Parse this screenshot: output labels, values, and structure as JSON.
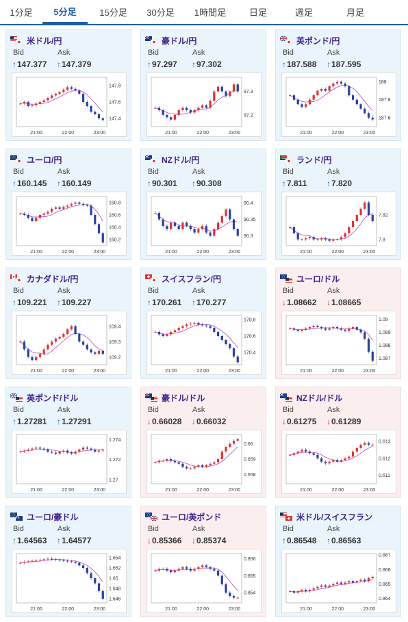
{
  "tabs": [
    {
      "label": "1分足",
      "active": false
    },
    {
      "label": "5分足",
      "active": true
    },
    {
      "label": "15分足",
      "active": false
    },
    {
      "label": "30分足",
      "active": false
    },
    {
      "label": "1時間足",
      "active": false
    },
    {
      "label": "日足",
      "active": false
    },
    {
      "label": "週足",
      "active": false
    },
    {
      "label": "月足",
      "active": false
    }
  ],
  "labels": {
    "bid": "Bid",
    "ask": "Ask"
  },
  "colors": {
    "up_candle": "#d33",
    "down_candle": "#2a3fa0",
    "ma_line": "#c040c0",
    "card_up_bg": "#eaf4fb",
    "card_down_bg": "#fbeeee",
    "up_arrow": "#1a5fa8",
    "down_arrow": "#c03030"
  },
  "pairs": [
    {
      "name": "米ドル/円",
      "flag": "us-jp-flag",
      "trend": "up",
      "bid": "147.377",
      "ask": "147.379",
      "times": [
        "21:00",
        "22:00",
        "23:00"
      ],
      "ticks": [
        "147.8",
        "147.6",
        "147.4"
      ],
      "ylim": [
        147.3,
        147.9
      ],
      "ohlc": [
        147.58,
        147.6,
        147.55,
        147.56,
        147.58,
        147.6,
        147.62,
        147.65,
        147.68,
        147.7,
        147.72,
        147.75,
        147.78,
        147.76,
        147.74,
        147.7,
        147.6,
        147.55,
        147.48,
        147.45,
        147.4,
        147.38
      ]
    },
    {
      "name": "豪ドル/円",
      "flag": "au-jp-flag",
      "trend": "up",
      "bid": "97.297",
      "ask": "97.302",
      "times": [
        "21:00",
        "22:00",
        "23:00"
      ],
      "ticks": [
        "97.3",
        "97.2"
      ],
      "ylim": [
        97.15,
        97.36
      ],
      "ohlc": [
        97.23,
        97.22,
        97.2,
        97.19,
        97.18,
        97.2,
        97.22,
        97.23,
        97.22,
        97.21,
        97.22,
        97.23,
        97.24,
        97.23,
        97.26,
        97.3,
        97.32,
        97.3,
        97.28,
        97.3,
        97.33,
        97.3
      ]
    },
    {
      "name": "英ポンド/円",
      "flag": "uk-jp-flag",
      "trend": "up",
      "bid": "187.588",
      "ask": "187.595",
      "times": [
        "21:00",
        "22:00",
        "23:00"
      ],
      "ticks": [
        "188",
        "187.8",
        "187.6"
      ],
      "ylim": [
        187.5,
        188.05
      ],
      "ohlc": [
        187.85,
        187.8,
        187.75,
        187.72,
        187.75,
        187.8,
        187.85,
        187.9,
        187.92,
        187.9,
        187.95,
        187.98,
        188.0,
        187.98,
        187.95,
        187.85,
        187.8,
        187.75,
        187.7,
        187.65,
        187.6,
        187.58
      ]
    },
    {
      "name": "ユーロ/円",
      "flag": "eu-jp-flag",
      "trend": "up",
      "bid": "160.145",
      "ask": "160.149",
      "times": [
        "21:00",
        "22:00",
        "23:00"
      ],
      "ticks": [
        "160.8",
        "160.6",
        "160.4",
        "160.2"
      ],
      "ylim": [
        160.1,
        160.9
      ],
      "ohlc": [
        160.62,
        160.6,
        160.55,
        160.5,
        160.55,
        160.6,
        160.62,
        160.65,
        160.7,
        160.72,
        160.7,
        160.73,
        160.75,
        160.78,
        160.8,
        160.78,
        160.76,
        160.75,
        160.6,
        160.45,
        160.3,
        160.15
      ]
    },
    {
      "name": "NZドル/円",
      "flag": "nz-jp-flag",
      "trend": "up",
      "bid": "90.301",
      "ask": "90.308",
      "times": [
        "21:00",
        "22:00",
        "23:00"
      ],
      "ticks": [
        "90.4",
        "90.35",
        "90.3"
      ],
      "ylim": [
        90.27,
        90.42
      ],
      "ohlc": [
        90.37,
        90.35,
        90.33,
        90.32,
        90.34,
        90.33,
        90.32,
        90.34,
        90.33,
        90.32,
        90.31,
        90.32,
        90.33,
        90.31,
        90.3,
        90.32,
        90.34,
        90.36,
        90.38,
        90.35,
        90.32,
        90.3
      ]
    },
    {
      "name": "ランド/円",
      "flag": "za-jp-flag",
      "trend": "up",
      "bid": "7.811",
      "ask": "7.820",
      "times": [
        "21:00",
        "22:00",
        "23:00"
      ],
      "ticks": [
        "7.82",
        "7.8"
      ],
      "ylim": [
        7.795,
        7.835
      ],
      "ohlc": [
        7.81,
        7.805,
        7.8,
        7.8,
        7.801,
        7.802,
        7.8,
        7.8,
        7.801,
        7.8,
        7.799,
        7.8,
        7.8,
        7.802,
        7.805,
        7.81,
        7.815,
        7.82,
        7.825,
        7.83,
        7.82,
        7.815
      ]
    },
    {
      "name": "カナダドル/円",
      "flag": "ca-jp-flag",
      "trend": "up",
      "bid": "109.221",
      "ask": "109.227",
      "times": [
        "21:00",
        "22:00",
        "23:00"
      ],
      "ticks": [
        "109.4",
        "109.3",
        "109.2"
      ],
      "ylim": [
        109.15,
        109.47
      ],
      "ohlc": [
        109.3,
        109.25,
        109.2,
        109.18,
        109.2,
        109.22,
        109.25,
        109.28,
        109.3,
        109.32,
        109.33,
        109.35,
        109.38,
        109.4,
        109.35,
        109.3,
        109.28,
        109.25,
        109.23,
        109.22,
        109.24,
        109.22
      ]
    },
    {
      "name": "スイスフラン/円",
      "flag": "ch-jp-flag",
      "trend": "up",
      "bid": "170.261",
      "ask": "170.277",
      "times": [
        "21:00",
        "22:00",
        "23:00"
      ],
      "ticks": [
        "170.8",
        "170.6",
        "170.4"
      ],
      "ylim": [
        170.25,
        170.85
      ],
      "ohlc": [
        170.65,
        170.62,
        170.6,
        170.62,
        170.65,
        170.67,
        170.7,
        170.72,
        170.74,
        170.75,
        170.76,
        170.74,
        170.73,
        170.72,
        170.7,
        170.65,
        170.6,
        170.55,
        170.5,
        170.45,
        170.35,
        170.28
      ]
    },
    {
      "name": "ユーロ/ドル",
      "flag": "eu-us-flag",
      "trend": "down",
      "bid": "1.08662",
      "ask": "1.08665",
      "times": [
        "21:00",
        "22:00",
        "23:00"
      ],
      "ticks": [
        "1.09",
        "1.089",
        "1.088",
        "1.087"
      ],
      "ylim": [
        1.0865,
        1.0903
      ],
      "ohlc": [
        1.0893,
        1.0892,
        1.0891,
        1.0892,
        1.0893,
        1.0894,
        1.0895,
        1.0894,
        1.0893,
        1.0892,
        1.0893,
        1.0894,
        1.0893,
        1.0892,
        1.0891,
        1.0893,
        1.0894,
        1.0892,
        1.089,
        1.0885,
        1.0875,
        1.0868
      ]
    },
    {
      "name": "英ポンド/ドル",
      "flag": "uk-us-flag",
      "trend": "up",
      "bid": "1.27281",
      "ask": "1.27291",
      "times": [
        "21:00",
        "22:00",
        "23:00"
      ],
      "ticks": [
        "1.274",
        "1.272",
        "1.27"
      ],
      "ylim": [
        1.2696,
        1.2745
      ],
      "ohlc": [
        1.2728,
        1.2729,
        1.273,
        1.2731,
        1.2732,
        1.2731,
        1.273,
        1.2728,
        1.2727,
        1.2726,
        1.2728,
        1.2729,
        1.2727,
        1.2726,
        1.2728,
        1.273,
        1.2732,
        1.2731,
        1.273,
        1.2728,
        1.2729,
        1.273
      ]
    },
    {
      "name": "豪ドル/ドル",
      "flag": "au-us-flag",
      "trend": "down",
      "bid": "0.66028",
      "ask": "0.66032",
      "times": [
        "21:00",
        "22:00",
        "23:00"
      ],
      "ticks": [
        "0.66",
        "0.659",
        "0.658"
      ],
      "ylim": [
        0.6574,
        0.6606
      ],
      "ohlc": [
        0.6588,
        0.6589,
        0.6589,
        0.659,
        0.6589,
        0.6588,
        0.6587,
        0.6585,
        0.6584,
        0.6584,
        0.6585,
        0.6586,
        0.6585,
        0.6586,
        0.6587,
        0.6588,
        0.659,
        0.6595,
        0.6598,
        0.66,
        0.6602,
        0.6603
      ]
    },
    {
      "name": "NZドル/ドル",
      "flag": "nz-us-flag",
      "trend": "down",
      "bid": "0.61275",
      "ask": "0.61289",
      "times": [
        "21:00",
        "22:00",
        "23:00"
      ],
      "ticks": [
        "0.613",
        "0.612",
        "0.611"
      ],
      "ylim": [
        0.6105,
        0.6134
      ],
      "ohlc": [
        0.6122,
        0.6123,
        0.6124,
        0.6125,
        0.6124,
        0.6123,
        0.6122,
        0.612,
        0.6118,
        0.6117,
        0.6118,
        0.6119,
        0.6118,
        0.6119,
        0.612,
        0.6121,
        0.6124,
        0.6126,
        0.6128,
        0.6129,
        0.6128,
        0.6128
      ]
    },
    {
      "name": "ユーロ/豪ドル",
      "flag": "eu-au-flag",
      "trend": "up",
      "bid": "1.64563",
      "ask": "1.64577",
      "times": [
        "21:00",
        "22:00",
        "23:00"
      ],
      "ticks": [
        "1.654",
        "1.652",
        "1.65",
        "1.648",
        "1.646"
      ],
      "ylim": [
        1.6452,
        1.6548
      ],
      "ohlc": [
        1.653,
        1.6532,
        1.6533,
        1.6534,
        1.6535,
        1.6536,
        1.6537,
        1.6538,
        1.6537,
        1.6536,
        1.6535,
        1.6534,
        1.6533,
        1.6532,
        1.653,
        1.6525,
        1.652,
        1.651,
        1.65,
        1.649,
        1.6475,
        1.646
      ]
    },
    {
      "name": "ユーロ/英ポンド",
      "flag": "eu-uk-flag",
      "trend": "down",
      "bid": "0.85366",
      "ask": "0.85374",
      "times": [
        "21:00",
        "22:00",
        "23:00"
      ],
      "ticks": [
        "0.856",
        "0.855",
        "0.854"
      ],
      "ylim": [
        0.8534,
        0.8563
      ],
      "ohlc": [
        0.8553,
        0.8554,
        0.8554,
        0.8553,
        0.8552,
        0.8553,
        0.8554,
        0.8555,
        0.8554,
        0.8553,
        0.8554,
        0.8555,
        0.8556,
        0.8555,
        0.8554,
        0.8553,
        0.855,
        0.8545,
        0.854,
        0.8538,
        0.8537,
        0.8537
      ]
    },
    {
      "name": "米ドル/スイスフラン",
      "flag": "us-ch-flag",
      "trend": "up",
      "bid": "0.86548",
      "ask": "0.86563",
      "times": [
        "21:00",
        "22:00",
        "23:00"
      ],
      "ticks": [
        "0.867",
        "0.866",
        "0.865",
        "0.864"
      ],
      "ylim": [
        0.8637,
        0.8671
      ],
      "ohlc": [
        0.8645,
        0.8644,
        0.8645,
        0.8646,
        0.8645,
        0.8646,
        0.8647,
        0.8648,
        0.8649,
        0.8648,
        0.8649,
        0.865,
        0.8651,
        0.865,
        0.8651,
        0.8652,
        0.8651,
        0.8652,
        0.8653,
        0.8652,
        0.8654,
        0.8655
      ]
    }
  ]
}
